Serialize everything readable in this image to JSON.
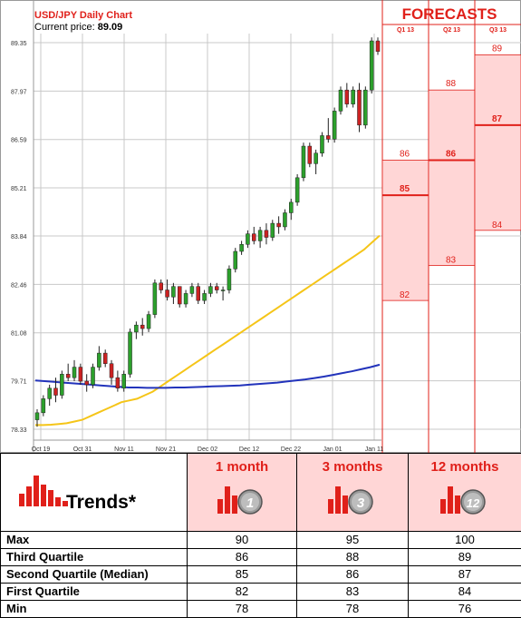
{
  "header": {
    "title": "USD/JPY Daily Chart",
    "price_label": "Current price:",
    "price_value": "89.09"
  },
  "forecasts_title": "FORECASTS",
  "colors": {
    "accent_red": "#e0201a",
    "forecast_fill": "#ffd6d6",
    "candle_up": "#2ca02c",
    "candle_down": "#cc2222",
    "ma_short": "#f5c518",
    "ma_long": "#2233bb",
    "grid": "#c8c8c8"
  },
  "chart_data": [
    {
      "type": "candlestick",
      "title": "USD/JPY Daily Chart",
      "x_ticks": [
        "Oct 19",
        "Oct 31",
        "Nov 11",
        "Nov 21",
        "Dec 02",
        "Dec 12",
        "Dec 22",
        "Jan 01",
        "Jan 11"
      ],
      "y_ticks": [
        "89.35",
        "87.97",
        "86.59",
        "85.21",
        "83.84",
        "82.46",
        "81.08",
        "79.71",
        "78.33"
      ],
      "ylim": [
        78.33,
        89.35
      ],
      "grid": true,
      "candles": [
        {
          "o": 78.6,
          "h": 78.9,
          "l": 78.4,
          "c": 78.8
        },
        {
          "o": 78.8,
          "h": 79.3,
          "l": 78.7,
          "c": 79.2
        },
        {
          "o": 79.2,
          "h": 79.6,
          "l": 79.0,
          "c": 79.5
        },
        {
          "o": 79.5,
          "h": 79.8,
          "l": 79.1,
          "c": 79.3
        },
        {
          "o": 79.3,
          "h": 80.0,
          "l": 79.2,
          "c": 79.9
        },
        {
          "o": 79.9,
          "h": 80.2,
          "l": 79.7,
          "c": 79.8
        },
        {
          "o": 79.8,
          "h": 80.3,
          "l": 79.7,
          "c": 80.1
        },
        {
          "o": 80.1,
          "h": 80.2,
          "l": 79.6,
          "c": 79.7
        },
        {
          "o": 79.7,
          "h": 79.9,
          "l": 79.4,
          "c": 79.6
        },
        {
          "o": 79.6,
          "h": 80.2,
          "l": 79.5,
          "c": 80.1
        },
        {
          "o": 80.1,
          "h": 80.7,
          "l": 80.0,
          "c": 80.5
        },
        {
          "o": 80.5,
          "h": 80.6,
          "l": 80.1,
          "c": 80.2
        },
        {
          "o": 80.2,
          "h": 80.3,
          "l": 79.6,
          "c": 79.8
        },
        {
          "o": 79.8,
          "h": 80.0,
          "l": 79.4,
          "c": 79.5
        },
        {
          "o": 79.5,
          "h": 80.0,
          "l": 79.4,
          "c": 79.9
        },
        {
          "o": 79.9,
          "h": 81.2,
          "l": 79.8,
          "c": 81.1
        },
        {
          "o": 81.1,
          "h": 81.4,
          "l": 80.9,
          "c": 81.3
        },
        {
          "o": 81.3,
          "h": 81.5,
          "l": 81.0,
          "c": 81.2
        },
        {
          "o": 81.2,
          "h": 81.7,
          "l": 81.1,
          "c": 81.6
        },
        {
          "o": 81.6,
          "h": 82.6,
          "l": 81.5,
          "c": 82.5
        },
        {
          "o": 82.5,
          "h": 82.6,
          "l": 82.2,
          "c": 82.3
        },
        {
          "o": 82.3,
          "h": 82.6,
          "l": 82.0,
          "c": 82.1
        },
        {
          "o": 82.1,
          "h": 82.5,
          "l": 81.9,
          "c": 82.4
        },
        {
          "o": 82.4,
          "h": 82.4,
          "l": 81.8,
          "c": 81.9
        },
        {
          "o": 81.9,
          "h": 82.3,
          "l": 81.8,
          "c": 82.2
        },
        {
          "o": 82.2,
          "h": 82.5,
          "l": 82.1,
          "c": 82.4
        },
        {
          "o": 82.4,
          "h": 82.5,
          "l": 81.9,
          "c": 82.0
        },
        {
          "o": 82.0,
          "h": 82.3,
          "l": 81.9,
          "c": 82.2
        },
        {
          "o": 82.2,
          "h": 82.5,
          "l": 82.1,
          "c": 82.4
        },
        {
          "o": 82.4,
          "h": 82.5,
          "l": 82.2,
          "c": 82.3
        },
        {
          "o": 82.3,
          "h": 82.4,
          "l": 82.0,
          "c": 82.3
        },
        {
          "o": 82.3,
          "h": 83.0,
          "l": 82.2,
          "c": 82.9
        },
        {
          "o": 82.9,
          "h": 83.5,
          "l": 82.8,
          "c": 83.4
        },
        {
          "o": 83.4,
          "h": 83.7,
          "l": 83.3,
          "c": 83.6
        },
        {
          "o": 83.6,
          "h": 84.0,
          "l": 83.5,
          "c": 83.9
        },
        {
          "o": 83.9,
          "h": 84.1,
          "l": 83.6,
          "c": 83.7
        },
        {
          "o": 83.7,
          "h": 84.1,
          "l": 83.5,
          "c": 84.0
        },
        {
          "o": 84.0,
          "h": 84.2,
          "l": 83.6,
          "c": 83.8
        },
        {
          "o": 83.8,
          "h": 84.3,
          "l": 83.7,
          "c": 84.2
        },
        {
          "o": 84.2,
          "h": 84.4,
          "l": 83.9,
          "c": 84.1
        },
        {
          "o": 84.1,
          "h": 84.6,
          "l": 84.0,
          "c": 84.5
        },
        {
          "o": 84.5,
          "h": 84.9,
          "l": 84.3,
          "c": 84.8
        },
        {
          "o": 84.8,
          "h": 85.6,
          "l": 84.7,
          "c": 85.5
        },
        {
          "o": 85.5,
          "h": 86.5,
          "l": 85.4,
          "c": 86.4
        },
        {
          "o": 86.4,
          "h": 86.5,
          "l": 85.8,
          "c": 85.9
        },
        {
          "o": 85.9,
          "h": 86.3,
          "l": 85.6,
          "c": 86.2
        },
        {
          "o": 86.2,
          "h": 86.8,
          "l": 86.1,
          "c": 86.7
        },
        {
          "o": 86.7,
          "h": 87.2,
          "l": 86.5,
          "c": 86.6
        },
        {
          "o": 86.6,
          "h": 87.5,
          "l": 86.5,
          "c": 87.4
        },
        {
          "o": 87.4,
          "h": 88.1,
          "l": 87.3,
          "c": 88.0
        },
        {
          "o": 88.0,
          "h": 88.2,
          "l": 87.5,
          "c": 87.6
        },
        {
          "o": 87.6,
          "h": 88.1,
          "l": 87.5,
          "c": 88.0
        },
        {
          "o": 88.0,
          "h": 88.2,
          "l": 86.8,
          "c": 87.0
        },
        {
          "o": 87.0,
          "h": 88.1,
          "l": 86.9,
          "c": 88.0
        },
        {
          "o": 88.0,
          "h": 89.5,
          "l": 87.9,
          "c": 89.4
        },
        {
          "o": 89.4,
          "h": 89.5,
          "l": 89.0,
          "c": 89.1
        }
      ],
      "ma_short": [
        78.45,
        78.45,
        78.46,
        78.48,
        78.5,
        78.55,
        78.6,
        78.7,
        78.8,
        78.9,
        79.0,
        79.1,
        79.15,
        79.2,
        79.3,
        79.4,
        79.55,
        79.7,
        79.85,
        80.0,
        80.15,
        80.3,
        80.45,
        80.6,
        80.75,
        80.9,
        81.05,
        81.2,
        81.35,
        81.5,
        81.65,
        81.8,
        81.95,
        82.1,
        82.25,
        82.4,
        82.55,
        82.7,
        82.85,
        83.0,
        83.15,
        83.3,
        83.45,
        83.65,
        83.85
      ],
      "ma_long": [
        79.72,
        79.7,
        79.68,
        79.66,
        79.64,
        79.62,
        79.6,
        79.58,
        79.56,
        79.54,
        79.52,
        79.52,
        79.51,
        79.51,
        79.51,
        79.52,
        79.52,
        79.53,
        79.54,
        79.55,
        79.56,
        79.57,
        79.58,
        79.6,
        79.62,
        79.64,
        79.66,
        79.69,
        79.72,
        79.75,
        79.79,
        79.83,
        79.88,
        79.93,
        79.98,
        80.04,
        80.1,
        80.17
      ]
    },
    {
      "type": "box",
      "title": "FORECASTS",
      "categories": [
        "Q1 13",
        "Q2 13",
        "Q3 13"
      ],
      "series": [
        {
          "name": "Q1 13",
          "min": 82,
          "q1": 82,
          "median": 85,
          "q3": 86,
          "max": 86
        },
        {
          "name": "Q2 13",
          "min": 83,
          "q1": 83,
          "median": 86,
          "q3": 88,
          "max": 88
        },
        {
          "name": "Q3 13",
          "min": 84,
          "q1": 84,
          "median": 87,
          "q3": 89,
          "max": 89
        }
      ],
      "labels": [
        [
          "86",
          "85",
          "82"
        ],
        [
          "88",
          "86",
          "83"
        ],
        [
          "89",
          "87",
          "84"
        ]
      ],
      "ylim": [
        78.33,
        89.35
      ]
    }
  ],
  "trends": {
    "title": "Trends*",
    "columns": [
      {
        "label": "1 month",
        "badge": "1"
      },
      {
        "label": "3 months",
        "badge": "3"
      },
      {
        "label": "12 months",
        "badge": "12"
      }
    ],
    "rows": [
      {
        "label": "Max",
        "values": [
          "90",
          "95",
          "100"
        ]
      },
      {
        "label": "Third Quartile",
        "values": [
          "86",
          "88",
          "89"
        ]
      },
      {
        "label": "Second Quartile (Median)",
        "values": [
          "85",
          "86",
          "87"
        ]
      },
      {
        "label": "First Quartile",
        "values": [
          "82",
          "83",
          "84"
        ]
      },
      {
        "label": "Min",
        "values": [
          "78",
          "78",
          "76"
        ]
      }
    ]
  }
}
